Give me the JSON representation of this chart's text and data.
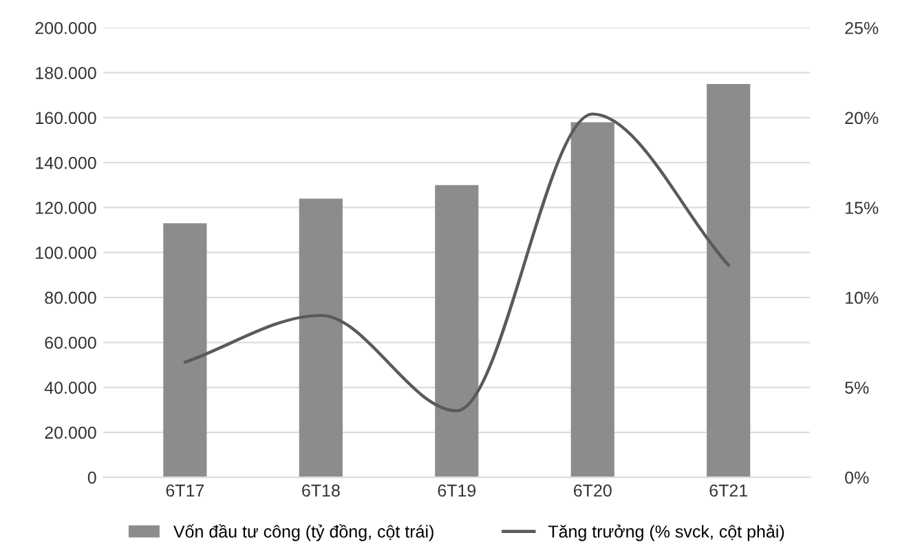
{
  "chart_data": {
    "type": "bar",
    "categories": [
      "6T17",
      "6T18",
      "6T19",
      "6T20",
      "6T21"
    ],
    "series": [
      {
        "name": "Vốn đầu tư công (tỷ đồng, cột trái)",
        "color": "#8c8c8c",
        "values": [
          113000,
          124000,
          130000,
          158000,
          175000
        ]
      },
      {
        "name": "Tăng trưởng (% svck, cột phải)",
        "type": "line",
        "axis": "y2",
        "color": "#5a5a5a",
        "values": [
          6.4,
          9.0,
          3.7,
          20.2,
          11.8
        ]
      }
    ],
    "ylim": [
      0,
      200000
    ],
    "yticks": [
      {
        "value": 0,
        "label": "0"
      },
      {
        "value": 20000,
        "label": "20.000"
      },
      {
        "value": 40000,
        "label": "40.000"
      },
      {
        "value": 60000,
        "label": "60.000"
      },
      {
        "value": 80000,
        "label": "80.000"
      },
      {
        "value": 100000,
        "label": "100.000"
      },
      {
        "value": 120000,
        "label": "120.000"
      },
      {
        "value": 140000,
        "label": "140.000"
      },
      {
        "value": 160000,
        "label": "160.000"
      },
      {
        "value": 180000,
        "label": "180.000"
      },
      {
        "value": 200000,
        "label": "200.000"
      }
    ],
    "y2lim": [
      0,
      25
    ],
    "y2ticks": [
      {
        "value": 0,
        "label": "0%"
      },
      {
        "value": 5,
        "label": "5%"
      },
      {
        "value": 10,
        "label": "10%"
      },
      {
        "value": 15,
        "label": "15%"
      },
      {
        "value": 20,
        "label": "20%"
      },
      {
        "value": 25,
        "label": "25%"
      }
    ],
    "grid": "y",
    "legend": "bottom"
  }
}
